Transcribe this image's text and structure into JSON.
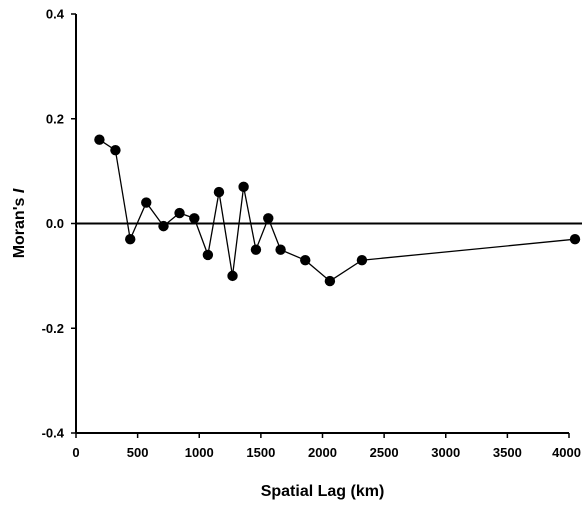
{
  "chart_data": {
    "type": "line",
    "title": "",
    "xlabel": "Spatial Lag (km)",
    "ylabel": {
      "prefix": "Moran's ",
      "symbol": "I"
    },
    "xlim": [
      0,
      4000
    ],
    "ylim": [
      -0.4,
      0.4
    ],
    "xticks": [
      0,
      500,
      1000,
      1500,
      2000,
      2500,
      3000,
      3500,
      4000
    ],
    "xtick_labels": [
      "0",
      "500",
      "1000",
      "1500",
      "2000",
      "2500",
      "3000",
      "3500",
      "4000"
    ],
    "yticks": [
      -0.4,
      -0.2,
      0.0,
      0.2,
      0.4
    ],
    "ytick_labels": [
      "-0.4",
      "-0.2",
      "0.0",
      "0.2",
      "0.4"
    ],
    "reference_line_y": 0,
    "grid": false,
    "legend": "none",
    "series": [
      {
        "marker": "circle",
        "color": "#000000",
        "points": [
          {
            "x": 190,
            "y": 0.16
          },
          {
            "x": 320,
            "y": 0.14
          },
          {
            "x": 440,
            "y": -0.03
          },
          {
            "x": 570,
            "y": 0.04
          },
          {
            "x": 710,
            "y": -0.005
          },
          {
            "x": 840,
            "y": 0.02
          },
          {
            "x": 960,
            "y": 0.01
          },
          {
            "x": 1070,
            "y": -0.06
          },
          {
            "x": 1160,
            "y": 0.06
          },
          {
            "x": 1270,
            "y": -0.1
          },
          {
            "x": 1360,
            "y": 0.07
          },
          {
            "x": 1460,
            "y": -0.05
          },
          {
            "x": 1560,
            "y": 0.01
          },
          {
            "x": 1660,
            "y": -0.05
          },
          {
            "x": 1860,
            "y": -0.07
          },
          {
            "x": 2060,
            "y": -0.11
          },
          {
            "x": 2320,
            "y": -0.07
          },
          {
            "x": 4050,
            "y": -0.03
          }
        ]
      }
    ]
  }
}
